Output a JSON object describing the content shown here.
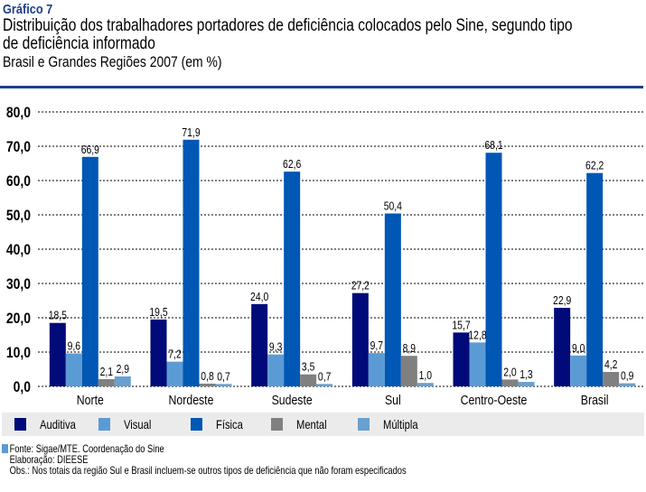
{
  "header": {
    "kicker": "Gráfico 7",
    "title_line1": "Distribuição dos trabalhadores portadores de deficiência colocados pelo Sine, segundo tipo",
    "title_line2": "de deficiência informado",
    "subtitle": "Brasil e Grandes Regiões 2007 (em %)"
  },
  "chart_data": {
    "type": "bar",
    "title": "Distribuição dos trabalhadores portadores de deficiência colocados pelo Sine, segundo tipo de deficiência informado",
    "subtitle": "Brasil e Grandes Regiões 2007 (em %)",
    "xlabel": "",
    "ylabel": "",
    "ylim": [
      0,
      80
    ],
    "yticks": [
      "0,0",
      "10,0",
      "20,0",
      "30,0",
      "40,0",
      "50,0",
      "60,0",
      "70,0",
      "80,0"
    ],
    "grid": true,
    "legend_position": "bottom",
    "categories": [
      "Norte",
      "Nordeste",
      "Sudeste",
      "Sul",
      "Centro-Oeste",
      "Brasil"
    ],
    "series": [
      {
        "name": "Auditiva",
        "color": "#000a78",
        "values": [
          18.5,
          19.5,
          24.0,
          27.2,
          15.7,
          22.9
        ],
        "labels": [
          "18,5",
          "19,5",
          "24,0",
          "27,2",
          "15,7",
          "22,9"
        ]
      },
      {
        "name": "Visual",
        "color": "#5b9bd5",
        "values": [
          9.6,
          7.2,
          9.3,
          9.7,
          12.8,
          9.0
        ],
        "labels": [
          "9,6",
          "7,2",
          "9,3",
          "9,7",
          "12,8",
          "9,0"
        ]
      },
      {
        "name": "Física",
        "color": "#0057b4",
        "values": [
          66.9,
          71.9,
          62.6,
          50.4,
          68.1,
          62.2
        ],
        "labels": [
          "66,9",
          "71,9",
          "62,6",
          "50,4",
          "68,1",
          "62,2"
        ]
      },
      {
        "name": "Mental",
        "color": "#808080",
        "values": [
          2.1,
          0.8,
          3.5,
          8.9,
          2.0,
          4.2
        ],
        "labels": [
          "2,1",
          "0,8",
          "3,5",
          "8,9",
          "2,0",
          "4,2"
        ]
      },
      {
        "name": "Múltipla",
        "color": "#69a0d0",
        "values": [
          2.9,
          0.7,
          0.7,
          1.0,
          1.3,
          0.9
        ],
        "labels": [
          "2,9",
          "0,7",
          "0,7",
          "1,0",
          "1,3",
          "0,9"
        ]
      }
    ]
  },
  "notes": {
    "source": "Fonte: Sigae/MTE. Coordenação do Sine",
    "elaboration": "Elaboração: DIEESE",
    "obs": "Obs.: Nos totais da região Sul e Brasil incluem-se outros tipos de deficiência que não foram especificados"
  }
}
